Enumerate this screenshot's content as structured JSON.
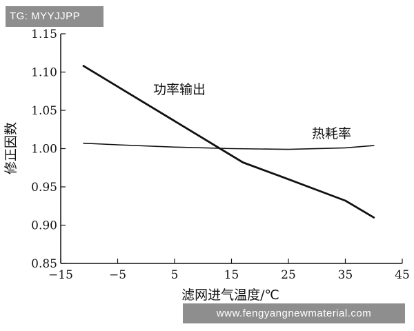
{
  "watermark_top": "TG: MYYJJPP",
  "watermark_bottom": "www.fengyangnewmaterial.com",
  "chart_data": {
    "type": "line",
    "xlabel": "滤网进气温度/℃",
    "ylabel": "修正因数",
    "xlim": [
      -15,
      45
    ],
    "ylim": [
      0.85,
      1.15
    ],
    "x_ticks": [
      -15,
      -5,
      5,
      15,
      25,
      35,
      45
    ],
    "x_tick_labels": [
      "−15",
      "−5",
      "5",
      "15",
      "25",
      "35",
      "45"
    ],
    "y_ticks": [
      0.85,
      0.9,
      0.95,
      1.0,
      1.05,
      1.1,
      1.15
    ],
    "y_tick_labels": [
      "0.85",
      "0.90",
      "0.95",
      "1.00",
      "1.05",
      "1.10",
      "1.15"
    ],
    "grid": false,
    "series": [
      {
        "name": "功率输出",
        "x": [
          -11,
          -5,
          5,
          15,
          17,
          25,
          35,
          40
        ],
        "y": [
          1.108,
          1.081,
          1.036,
          0.991,
          0.982,
          0.96,
          0.932,
          0.91
        ]
      },
      {
        "name": "热耗率",
        "x": [
          -11,
          -5,
          5,
          15,
          25,
          35,
          40
        ],
        "y": [
          1.007,
          1.005,
          1.002,
          1.0,
          0.999,
          1.001,
          1.004
        ]
      }
    ]
  }
}
